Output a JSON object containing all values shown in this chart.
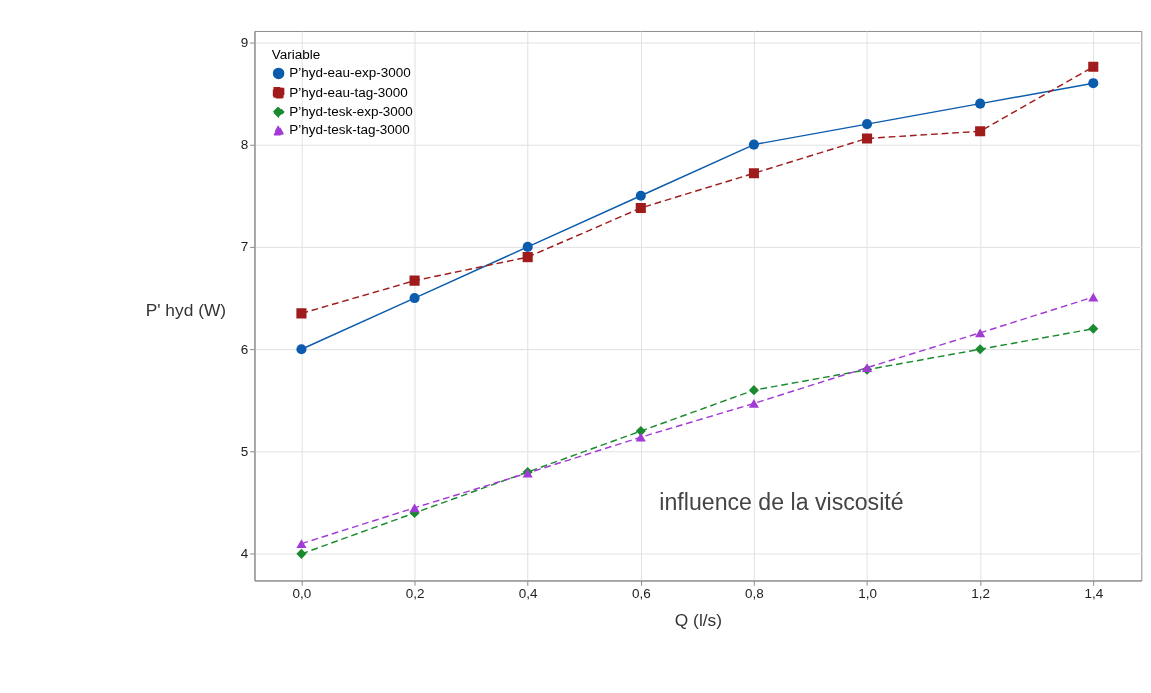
{
  "chart_data": {
    "type": "line",
    "xlabel": "Q (l/s)",
    "ylabel": "P' hyd (W)",
    "legend_title": "Variable",
    "annotations": [
      "influence de la viscosité"
    ],
    "x": [
      0,
      0.2,
      0.4,
      0.6,
      0.8,
      1.0,
      1.2,
      1.4
    ],
    "series": [
      {
        "name": "P’hyd-eau-exp-3000",
        "color": "#0b5cad",
        "marker": "circle",
        "line_style": "solid",
        "values": [
          6.0,
          6.5,
          7.0,
          7.5,
          8.0,
          8.2,
          8.4,
          8.6
        ]
      },
      {
        "name": "P’hyd-eau-tag-3000",
        "color": "#a01b1b",
        "marker": "square",
        "line_style": "dashed",
        "values": [
          6.35,
          6.67,
          6.9,
          7.38,
          7.72,
          8.06,
          8.13,
          8.76
        ]
      },
      {
        "name": "P’hyd-tesk-exp-3000",
        "color": "#1a8a2e",
        "marker": "diamond",
        "line_style": "dashed",
        "values": [
          4.0,
          4.4,
          4.8,
          5.2,
          5.6,
          5.8,
          6.0,
          6.2
        ]
      },
      {
        "name": "P’hyd-tesk-tag-3000",
        "color": "#a23bd6",
        "marker": "triangle",
        "line_style": "dashed",
        "values": [
          4.1,
          4.45,
          4.79,
          5.14,
          5.47,
          5.82,
          6.16,
          6.51
        ]
      }
    ],
    "xlim": [
      -0.083,
      1.485
    ],
    "ylim": [
      3.74,
      9.11
    ],
    "xticks": [
      {
        "value": 0,
        "label": "0,0"
      },
      {
        "value": 0.2,
        "label": "0,2"
      },
      {
        "value": 0.4,
        "label": "0,4"
      },
      {
        "value": 0.6,
        "label": "0,6"
      },
      {
        "value": 0.8,
        "label": "0,8"
      },
      {
        "value": 1.0,
        "label": "1,0"
      },
      {
        "value": 1.2,
        "label": "1,2"
      },
      {
        "value": 1.4,
        "label": "1,4"
      }
    ],
    "yticks": [
      4,
      5,
      6,
      7,
      8,
      9
    ],
    "grid": true,
    "legend": "top left"
  }
}
